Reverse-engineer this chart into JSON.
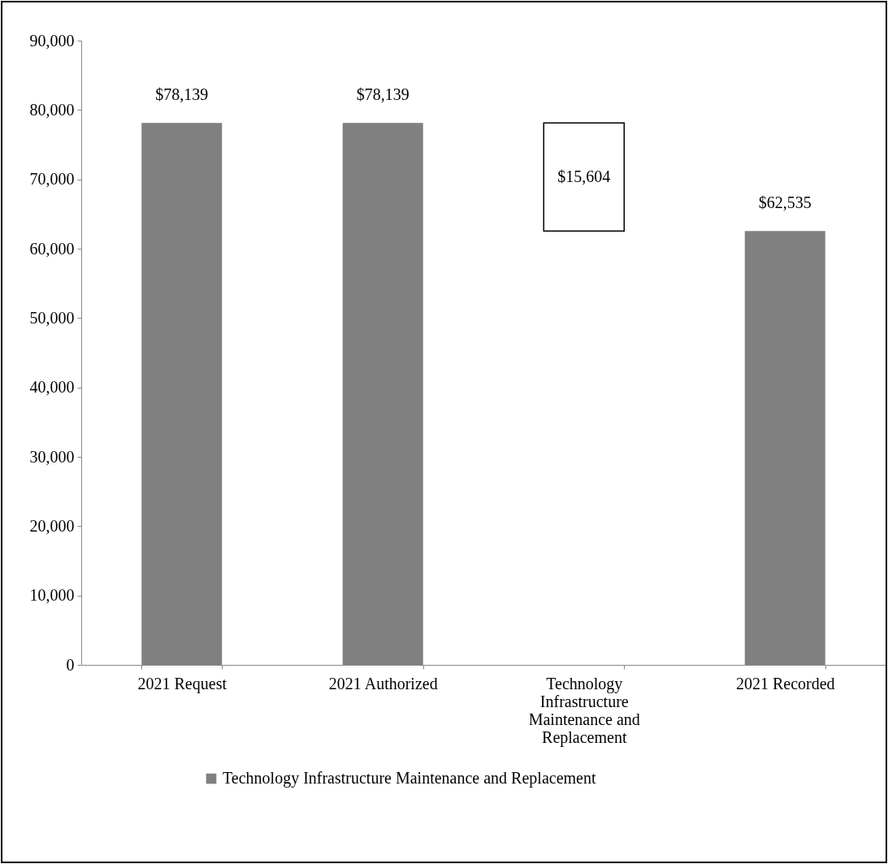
{
  "chart_data": {
    "type": "bar",
    "categories": [
      "2021 Request",
      "2021 Authorized",
      "Technology Infrastructure Maintenance and Replacement",
      "2021 Recorded"
    ],
    "series": [
      {
        "name": "Technology Infrastructure Maintenance and Replacement",
        "color": "#808080",
        "colors": [
          "#808080",
          "#808080",
          "#ffffff",
          "#808080"
        ],
        "values": [
          78139,
          78139,
          15604,
          62535
        ],
        "base": [
          0,
          0,
          62535,
          0
        ],
        "value_labels": [
          "$78,139",
          "$78,139",
          "$15,604",
          "$62,535"
        ]
      }
    ],
    "ylim": [
      0,
      90000
    ],
    "yticks": [
      0,
      {
        "value": 10000,
        "label": "10,000"
      },
      {
        "value": 20000,
        "label": "20,000"
      },
      {
        "value": 30000,
        "label": "30,000"
      },
      {
        "value": 40000,
        "label": "40,000"
      },
      {
        "value": 50000,
        "label": "50,000"
      },
      {
        "value": 60000,
        "label": "60,000"
      },
      {
        "value": 70000,
        "label": "70,000"
      },
      {
        "value": 80000,
        "label": "80,000"
      },
      {
        "value": 90000,
        "label": "90,000"
      }
    ],
    "grid": false,
    "legend": "bottom"
  }
}
